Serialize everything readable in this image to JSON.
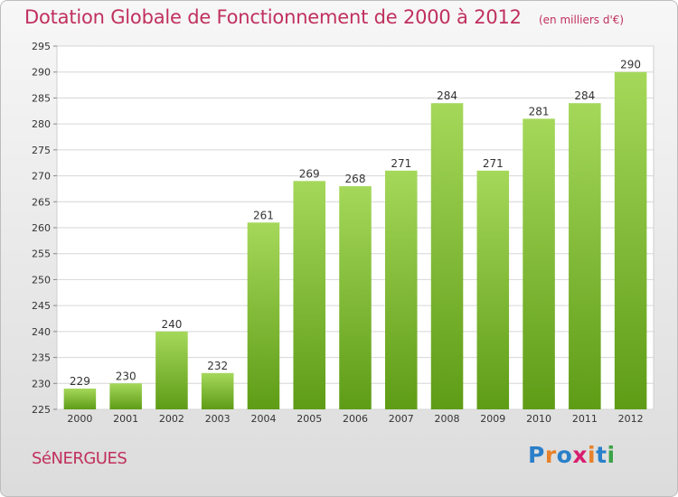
{
  "header": {
    "title": "Dotation Globale de Fonctionnement de 2000 à 2012",
    "unit_note": "(en milliers d'€)"
  },
  "footer": {
    "commune": "SéNERGUES",
    "logo_text": "Proxiti",
    "logo_letters": [
      {
        "ch": "P",
        "color": "#2a7fc9"
      },
      {
        "ch": "r",
        "color": "#e8812a"
      },
      {
        "ch": "o",
        "color": "#2a7fc9"
      },
      {
        "ch": "x",
        "color": "#d81e6f"
      },
      {
        "ch": "i",
        "color": "#e8812a"
      },
      {
        "ch": "t",
        "color": "#2a7fc9"
      },
      {
        "ch": "i",
        "color": "#3aa348"
      }
    ]
  },
  "colors": {
    "bar_top": "#a5d85a",
    "bar_bottom": "#5e9c16",
    "accent": "#c0305e"
  },
  "chart_data": {
    "type": "bar",
    "categories": [
      "2000",
      "2001",
      "2002",
      "2003",
      "2004",
      "2005",
      "2006",
      "2007",
      "2008",
      "2009",
      "2010",
      "2011",
      "2012"
    ],
    "values": [
      229,
      230,
      240,
      232,
      261,
      269,
      268,
      271,
      284,
      271,
      281,
      284,
      290
    ],
    "title": "Dotation Globale de Fonctionnement de 2000 à 2012",
    "ylim": [
      225,
      295
    ],
    "yticks": [
      225,
      230,
      235,
      240,
      245,
      250,
      255,
      260,
      265,
      270,
      275,
      280,
      285,
      290,
      295
    ],
    "grid": true,
    "data_labels": true
  }
}
